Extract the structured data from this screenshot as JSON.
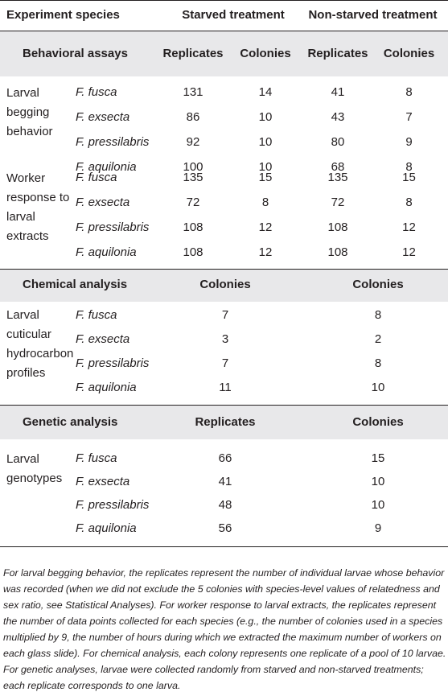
{
  "header": {
    "col0": "Experiment species",
    "col1": "Starved treatment",
    "col2": "Non-starved treatment"
  },
  "behavioral": {
    "title": "Behavioral assays",
    "sub": [
      "Replicates",
      "Colonies",
      "Replicates",
      "Colonies"
    ],
    "groups": [
      {
        "label": [
          "Larval",
          "begging",
          "behavior"
        ],
        "rows": [
          {
            "species": "F. fusca",
            "v": [
              "131",
              "14",
              "41",
              "8"
            ]
          },
          {
            "species": "F. exsecta",
            "v": [
              "86",
              "10",
              "43",
              "7"
            ]
          },
          {
            "species": "F. pressilabris",
            "v": [
              "92",
              "10",
              "80",
              "9"
            ]
          },
          {
            "species": "F. aquilonia",
            "v": [
              "100",
              "10",
              "68",
              "8"
            ]
          }
        ]
      },
      {
        "label": [
          "Worker",
          "response to",
          "larval",
          "extracts"
        ],
        "rows": [
          {
            "species": "F. fusca",
            "v": [
              "135",
              "15",
              "135",
              "15"
            ]
          },
          {
            "species": "F. exsecta",
            "v": [
              "72",
              "8",
              "72",
              "8"
            ]
          },
          {
            "species": "F. pressilabris",
            "v": [
              "108",
              "12",
              "108",
              "12"
            ]
          },
          {
            "species": "F. aquilonia",
            "v": [
              "108",
              "12",
              "108",
              "12"
            ]
          }
        ]
      }
    ]
  },
  "chemical": {
    "title": "Chemical analysis",
    "sub": [
      "Colonies",
      "Colonies"
    ],
    "label": [
      "Larval",
      "cuticular",
      "hydrocarbon",
      "profiles"
    ],
    "rows": [
      {
        "species": "F. fusca",
        "v": [
          "7",
          "8"
        ]
      },
      {
        "species": "F. exsecta",
        "v": [
          "3",
          "2"
        ]
      },
      {
        "species": "F. pressilabris",
        "v": [
          "7",
          "8"
        ]
      },
      {
        "species": "F. aquilonia",
        "v": [
          "11",
          "10"
        ]
      }
    ]
  },
  "genetic": {
    "title": "Genetic analysis",
    "sub": [
      "Replicates",
      "Colonies"
    ],
    "label": [
      "Larval",
      "genotypes"
    ],
    "rows": [
      {
        "species": "F. fusca",
        "v": [
          "66",
          "15"
        ]
      },
      {
        "species": "F. exsecta",
        "v": [
          "41",
          "10"
        ]
      },
      {
        "species": "F. pressilabris",
        "v": [
          "48",
          "10"
        ]
      },
      {
        "species": "F. aquilonia",
        "v": [
          "56",
          "9"
        ]
      }
    ]
  },
  "footnote": "For larval begging behavior, the replicates represent the number of individual larvae whose behavior was recorded (when we did not exclude the 5 colonies with species-level values of relatedness and sex ratio, see Statistical Analyses). For worker response to larval extracts, the replicates represent the number of data points collected for each species (e.g., the number of colonies used in a species multiplied by 9, the number of hours during which we extracted the maximum number of workers on each glass slide). For chemical analysis, each colony represents one replicate of a pool of 10 larvae. For genetic analyses, larvae were collected randomly from starved and non-starved treatments; each replicate corresponds to one larva."
}
